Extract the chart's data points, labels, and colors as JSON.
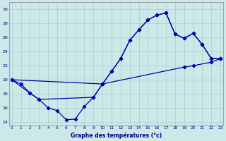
{
  "xlabel": "Graphe des températures (°c)",
  "bg_color": "#cce8e8",
  "line_color": "#0000aa",
  "grid_color": "#aacccc",
  "ylim": [
    13.5,
    31.0
  ],
  "yticks": [
    14,
    16,
    18,
    20,
    22,
    24,
    26,
    28,
    30
  ],
  "xlim": [
    -0.3,
    23.3
  ],
  "xticks": [
    0,
    1,
    2,
    3,
    4,
    5,
    6,
    7,
    8,
    9,
    10,
    11,
    12,
    13,
    14,
    15,
    16,
    17,
    18,
    19,
    20,
    21,
    22,
    23
  ],
  "line1_x": [
    0,
    1,
    2,
    3,
    4,
    5,
    6,
    7,
    8,
    9,
    10,
    11,
    12,
    13,
    14,
    15,
    16,
    17,
    18,
    19,
    20,
    21,
    22,
    23
  ],
  "line1_y": [
    20.0,
    19.4,
    18.1,
    17.2,
    16.0,
    15.6,
    14.3,
    14.4,
    16.2,
    17.5,
    19.4,
    21.2,
    23.0,
    25.6,
    27.1,
    28.5,
    29.2,
    29.5,
    26.5,
    25.9,
    26.6,
    25.0,
    23.0,
    23.0
  ],
  "line2_x": [
    0,
    10,
    11,
    12,
    13,
    14,
    15,
    16,
    17,
    18,
    19,
    20,
    21,
    22,
    23
  ],
  "line2_y": [
    20.0,
    19.4,
    21.2,
    23.0,
    25.6,
    27.1,
    28.5,
    29.2,
    29.5,
    26.5,
    25.9,
    26.6,
    25.0,
    23.0,
    23.0
  ],
  "line3_x": [
    0,
    2,
    3,
    9,
    10,
    19,
    20,
    22,
    23
  ],
  "line3_y": [
    20.0,
    18.1,
    17.2,
    17.5,
    19.4,
    21.8,
    22.0,
    22.5,
    23.0
  ]
}
